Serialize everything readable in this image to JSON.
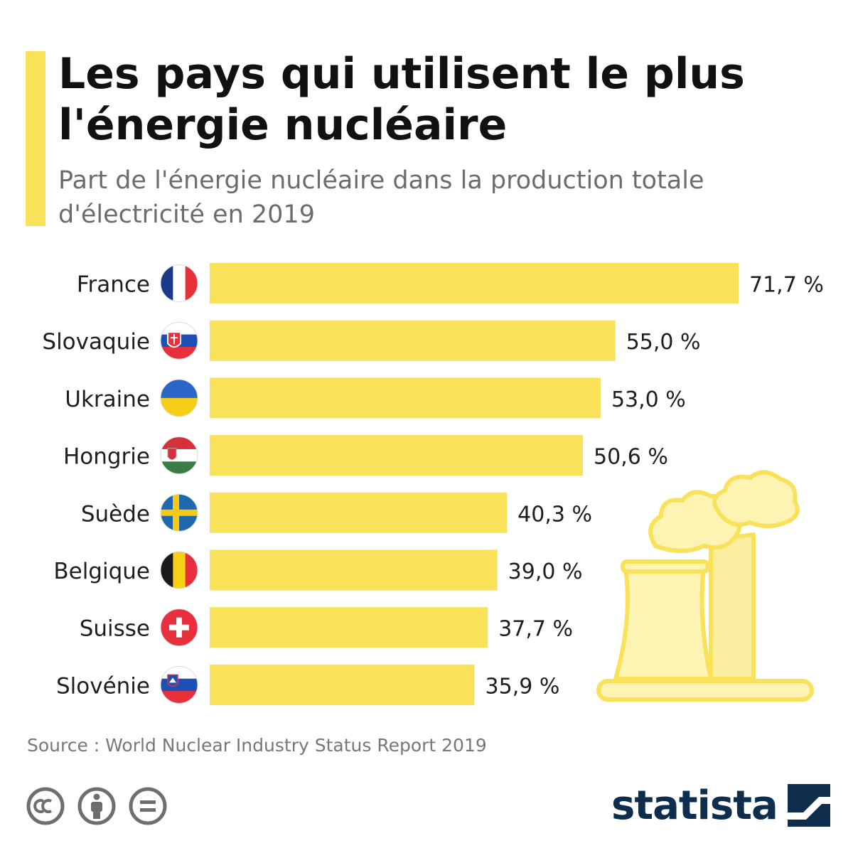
{
  "header": {
    "title": "Les pays qui utilisent le plus l'énergie nucléaire",
    "subtitle": "Part de l'énergie nucléaire dans la production totale d'électricité en 2019"
  },
  "footer": {
    "source": "Source : World Nuclear Industry Status Report 2019",
    "brand": "statista",
    "license_icons": [
      "cc-icon",
      "attribution-icon",
      "no-derivatives-icon"
    ]
  },
  "colors": {
    "bar": "#f9e15a",
    "accent": "#f9e15a",
    "title": "#111111",
    "subtitle": "#6c6c6c",
    "brand": "#0f2e4e"
  },
  "chart_data": {
    "type": "bar",
    "orientation": "horizontal",
    "categories": [
      "France",
      "Slovaquie",
      "Ukraine",
      "Hongrie",
      "Suède",
      "Belgique",
      "Suisse",
      "Slovénie"
    ],
    "values": [
      71.7,
      55.0,
      53.0,
      50.6,
      40.3,
      39.0,
      37.7,
      35.9
    ],
    "value_labels": [
      "71,7 %",
      "55,0 %",
      "53,0 %",
      "50,6 %",
      "40,3 %",
      "39,0 %",
      "37,7 %",
      "35,9 %"
    ],
    "flags": [
      "france-flag-icon",
      "slovakia-flag-icon",
      "ukraine-flag-icon",
      "hungary-flag-icon",
      "sweden-flag-icon",
      "belgium-flag-icon",
      "switzerland-flag-icon",
      "slovenia-flag-icon"
    ],
    "xlim": [
      0,
      71.7
    ],
    "grid": false,
    "legend": "none",
    "decoration": "nuclear-plant-illustration"
  }
}
